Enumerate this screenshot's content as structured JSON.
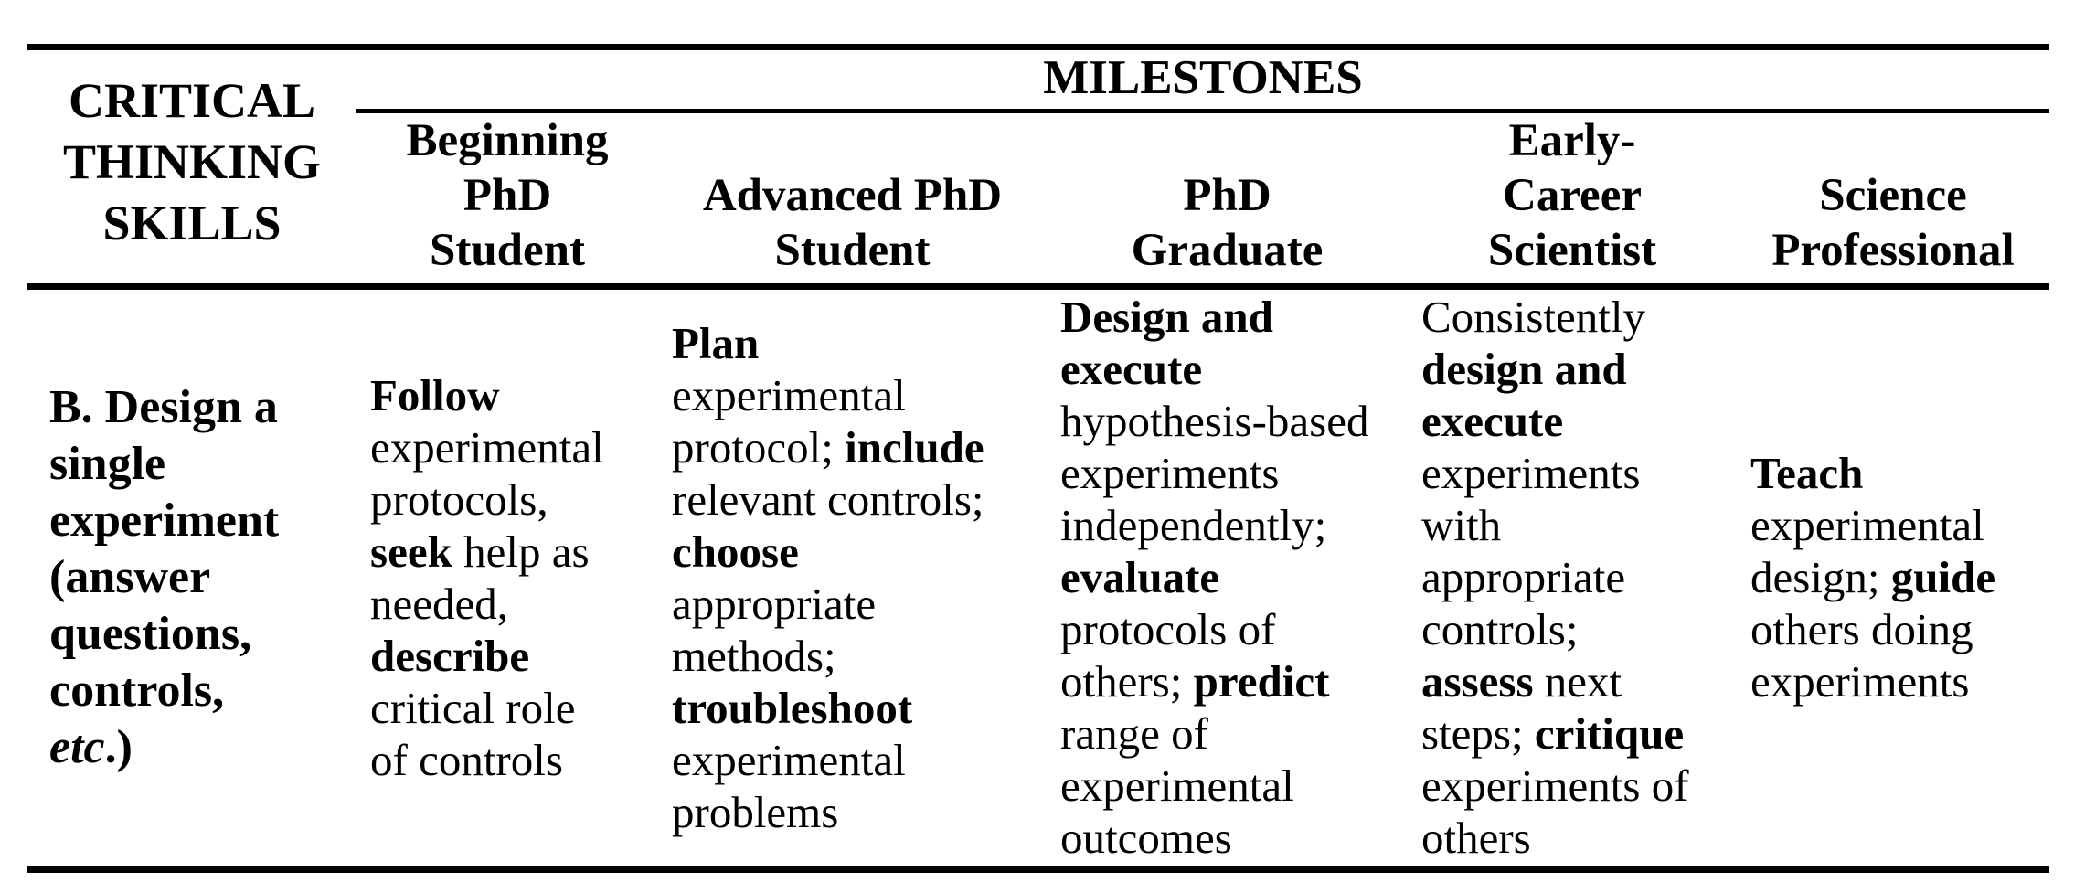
{
  "colors": {
    "text": "#000000",
    "background": "#ffffff",
    "rule": "#000000"
  },
  "table": {
    "corner_header_html": "CRITICAL<br>THINKING<br>SKILLS",
    "corner_header_text": "CRITICAL THINKING SKILLS",
    "group_header": "MILESTONES",
    "column_headers_html": [
      "Beginning<br>PhD<br>Student",
      "Advanced PhD<br>Student",
      "PhD<br>Graduate",
      "Early-<br>Career<br>Scientist",
      "Science<br>Professional"
    ],
    "column_headers_text": [
      "Beginning PhD Student",
      "Advanced PhD Student",
      "PhD Graduate",
      "Early-Career Scientist",
      "Science Professional"
    ],
    "rows": [
      {
        "skill_html": "<b>B. Design a<br>single<br>experiment<br>(answer<br>questions,<br>controls,<br><i>etc</i>.)</b>",
        "skill_text": "B. Design a single experiment (answer questions, controls, etc.)",
        "cells_html": [
          "<b>Follow</b><br>experimental<br>protocols,<br><b>seek</b> help as<br>needed,<br><b>describe</b><br>critical role<br>of controls",
          "<b>Plan</b><br>experimental<br>protocol; <b>include</b><br>relevant controls;<br><b>choose</b><br>appropriate<br>methods;<br><b>troubleshoot</b><br>experimental<br>problems",
          "<b>Design and</b><br><b>execute</b><br>hypothesis-based<br>experiments<br>independently;<br><b>evaluate</b><br>protocols of<br>others; <b>predict</b><br>range of<br>experimental<br>outcomes",
          "Consistently<br><b>design and</b><br><b>execute</b><br>experiments<br>with<br>appropriate<br>controls;<br><b>assess</b> next<br>steps; <b>critique</b><br>experiments of<br>others",
          "<b>Teach</b><br>experimental<br>design; <b>guide</b><br>others doing<br>experiments"
        ],
        "cells_text": [
          "Follow experimental protocols, seek help as needed, describe critical role of controls",
          "Plan experimental protocol; include relevant controls; choose appropriate methods; troubleshoot experimental problems",
          "Design and execute hypothesis-based experiments independently; evaluate protocols of others; predict range of experimental outcomes",
          "Consistently design and execute experiments with appropriate controls; assess next steps; critique experiments of others",
          "Teach experimental design; guide others doing experiments"
        ]
      }
    ]
  }
}
